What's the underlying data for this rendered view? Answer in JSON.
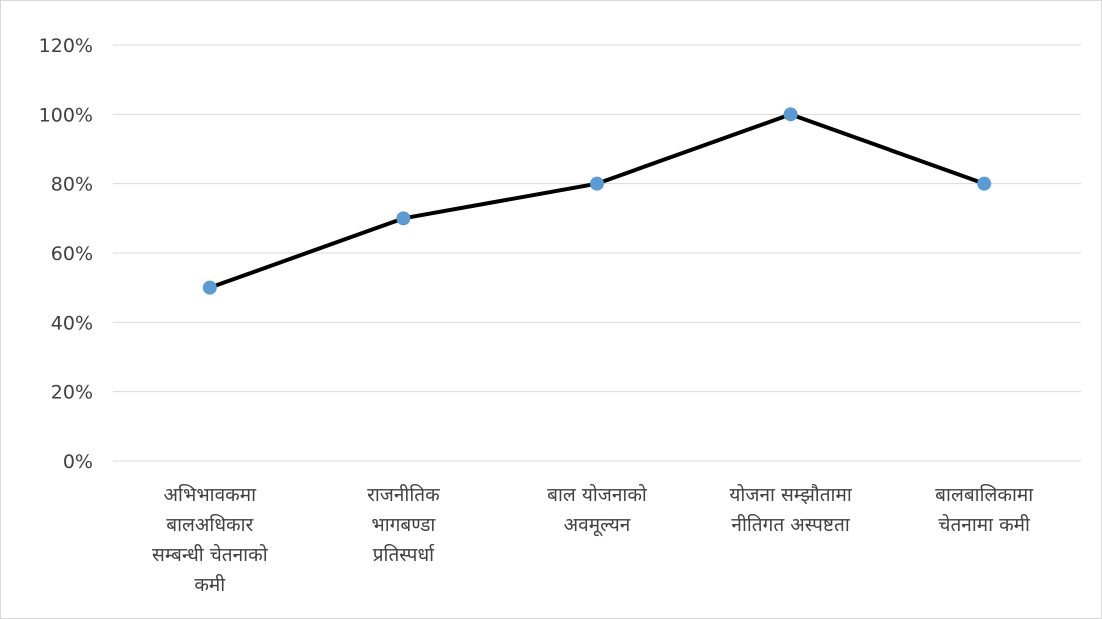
{
  "chart_data": {
    "type": "line",
    "title": "",
    "xlabel": "",
    "ylabel": "",
    "categories": [
      [
        "अभिभावकमा",
        "बालअधिकार",
        "सम्बन्धी चेतनाको",
        "कमी"
      ],
      [
        "राजनीतिक",
        "भागबण्डा",
        "प्रतिस्पर्धा"
      ],
      [
        "बाल योजनाको",
        "अवमूल्यन"
      ],
      [
        "योजना सम्झौतामा",
        "नीतिगत अस्पष्टता"
      ],
      [
        "बालबालिकामा",
        "चेतनामा कमी"
      ]
    ],
    "series": [
      {
        "values": [
          50,
          70,
          80,
          100,
          80
        ]
      }
    ],
    "ylim": [
      0,
      120
    ],
    "yticks": [
      "0%",
      "20%",
      "40%",
      "60%",
      "80%",
      "100%",
      "120%"
    ],
    "grid": true,
    "legend": "none",
    "line_color": "#000000",
    "marker_color": "#5b9bd5",
    "grid_color": "#d9d9d9"
  }
}
